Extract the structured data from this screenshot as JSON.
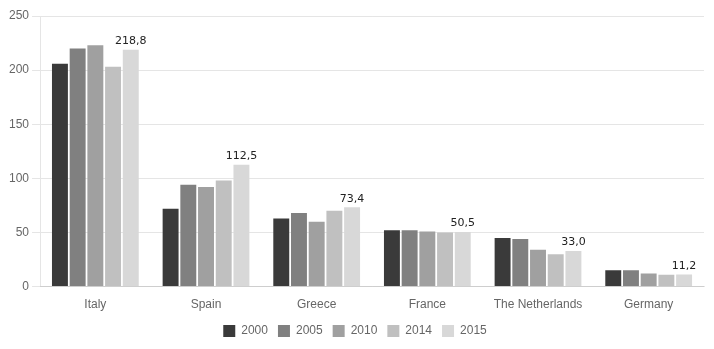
{
  "chart_data": {
    "type": "bar",
    "categories": [
      "Italy",
      "Spain",
      "Greece",
      "France",
      "The Netherlands",
      "Germany"
    ],
    "series": [
      {
        "name": "2000",
        "color": "#3a3a3a",
        "values": [
          206,
          72,
          63,
          52,
          45,
          15
        ]
      },
      {
        "name": "2005",
        "color": "#808080",
        "values": [
          220,
          94,
          68,
          52,
          44,
          15
        ]
      },
      {
        "name": "2010",
        "color": "#a0a0a0",
        "values": [
          223,
          92,
          60,
          51,
          34,
          12
        ]
      },
      {
        "name": "2014",
        "color": "#c0c0c0",
        "values": [
          203,
          98,
          70,
          50,
          30,
          11
        ]
      },
      {
        "name": "2015",
        "color": "#d8d8d8",
        "values": [
          218.8,
          112.5,
          73.4,
          50.5,
          33.0,
          11.2
        ],
        "data_labels": true,
        "value_labels": [
          "218,8",
          "112,5",
          "73,4",
          "50,5",
          "33,0",
          "11,2"
        ]
      }
    ],
    "ylim": [
      0,
      250
    ],
    "yticks": [
      0,
      50,
      100,
      150,
      200,
      250
    ],
    "grid": true,
    "legend": "bottom"
  }
}
